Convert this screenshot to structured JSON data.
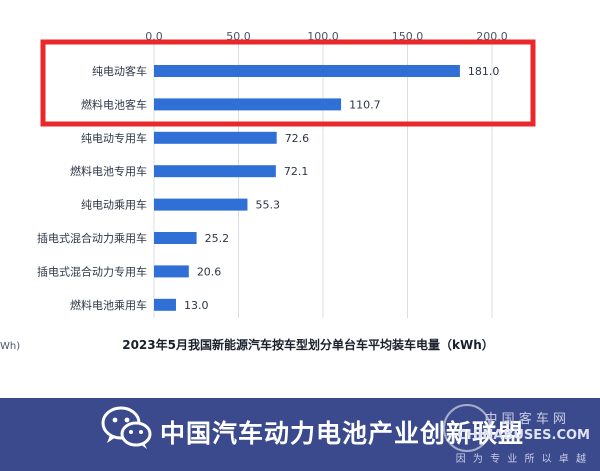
{
  "chart_data": {
    "type": "bar",
    "orientation": "horizontal",
    "categories": [
      "纯电动客车",
      "燃料电池客车",
      "纯电动专用车",
      "燃料电池专用车",
      "纯电动乘用车",
      "插电式混合动力乘用车",
      "插电式混合动力专用车",
      "燃料电池乘用车"
    ],
    "values": [
      181.0,
      110.7,
      72.6,
      72.1,
      55.3,
      25.2,
      20.6,
      13.0
    ],
    "value_labels": [
      "181.0",
      "110.7",
      "72.6",
      "72.1",
      "55.3",
      "25.2",
      "20.6",
      "13.0"
    ],
    "x_ticks": [
      "0.0",
      "50.0",
      "100.0",
      "150.0",
      "200.0"
    ],
    "x_tick_values": [
      0,
      50,
      100,
      150,
      200
    ],
    "xlim": [
      0,
      200
    ],
    "title": "2023年5月我国新能源汽车按车型划分单台车平均装车电量（kWh）",
    "left_unit_fragment": "Wh)",
    "grid": true,
    "highlight": {
      "categories_highlighted": [
        "纯电动客车",
        "燃料电池客车"
      ],
      "color": "#e8282b"
    },
    "bar_color": "#2f6fd6"
  },
  "footer": {
    "title": "中国汽车动力电池产业创新联盟",
    "brand_cn": "中 国 客 车 网",
    "brand_en": "CHINABUSES.COM",
    "slogan": "因 为 专 业  所 以 卓 越",
    "background": "#3a4a8c"
  }
}
